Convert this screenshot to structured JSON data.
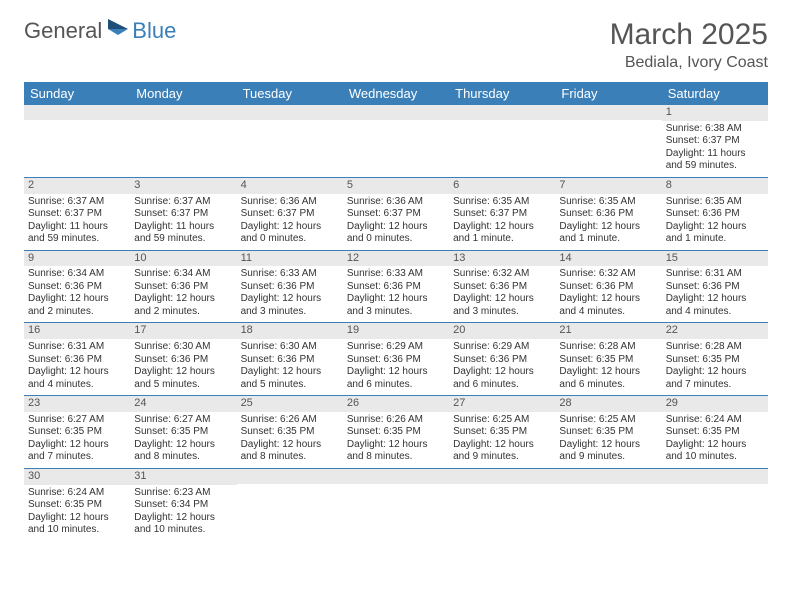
{
  "logo": {
    "part1": "General",
    "part2": "Blue"
  },
  "title": "March 2025",
  "subtitle": "Bediala, Ivory Coast",
  "header_bg": "#3b7fb8",
  "daynum_bg": "#e9e9e9",
  "dayNames": [
    "Sunday",
    "Monday",
    "Tuesday",
    "Wednesday",
    "Thursday",
    "Friday",
    "Saturday"
  ],
  "weeks": [
    [
      {
        "n": "",
        "lines": []
      },
      {
        "n": "",
        "lines": []
      },
      {
        "n": "",
        "lines": []
      },
      {
        "n": "",
        "lines": []
      },
      {
        "n": "",
        "lines": []
      },
      {
        "n": "",
        "lines": []
      },
      {
        "n": "1",
        "lines": [
          "Sunrise: 6:38 AM",
          "Sunset: 6:37 PM",
          "Daylight: 11 hours and 59 minutes."
        ]
      }
    ],
    [
      {
        "n": "2",
        "lines": [
          "Sunrise: 6:37 AM",
          "Sunset: 6:37 PM",
          "Daylight: 11 hours and 59 minutes."
        ]
      },
      {
        "n": "3",
        "lines": [
          "Sunrise: 6:37 AM",
          "Sunset: 6:37 PM",
          "Daylight: 11 hours and 59 minutes."
        ]
      },
      {
        "n": "4",
        "lines": [
          "Sunrise: 6:36 AM",
          "Sunset: 6:37 PM",
          "Daylight: 12 hours and 0 minutes."
        ]
      },
      {
        "n": "5",
        "lines": [
          "Sunrise: 6:36 AM",
          "Sunset: 6:37 PM",
          "Daylight: 12 hours and 0 minutes."
        ]
      },
      {
        "n": "6",
        "lines": [
          "Sunrise: 6:35 AM",
          "Sunset: 6:37 PM",
          "Daylight: 12 hours and 1 minute."
        ]
      },
      {
        "n": "7",
        "lines": [
          "Sunrise: 6:35 AM",
          "Sunset: 6:36 PM",
          "Daylight: 12 hours and 1 minute."
        ]
      },
      {
        "n": "8",
        "lines": [
          "Sunrise: 6:35 AM",
          "Sunset: 6:36 PM",
          "Daylight: 12 hours and 1 minute."
        ]
      }
    ],
    [
      {
        "n": "9",
        "lines": [
          "Sunrise: 6:34 AM",
          "Sunset: 6:36 PM",
          "Daylight: 12 hours and 2 minutes."
        ]
      },
      {
        "n": "10",
        "lines": [
          "Sunrise: 6:34 AM",
          "Sunset: 6:36 PM",
          "Daylight: 12 hours and 2 minutes."
        ]
      },
      {
        "n": "11",
        "lines": [
          "Sunrise: 6:33 AM",
          "Sunset: 6:36 PM",
          "Daylight: 12 hours and 3 minutes."
        ]
      },
      {
        "n": "12",
        "lines": [
          "Sunrise: 6:33 AM",
          "Sunset: 6:36 PM",
          "Daylight: 12 hours and 3 minutes."
        ]
      },
      {
        "n": "13",
        "lines": [
          "Sunrise: 6:32 AM",
          "Sunset: 6:36 PM",
          "Daylight: 12 hours and 3 minutes."
        ]
      },
      {
        "n": "14",
        "lines": [
          "Sunrise: 6:32 AM",
          "Sunset: 6:36 PM",
          "Daylight: 12 hours and 4 minutes."
        ]
      },
      {
        "n": "15",
        "lines": [
          "Sunrise: 6:31 AM",
          "Sunset: 6:36 PM",
          "Daylight: 12 hours and 4 minutes."
        ]
      }
    ],
    [
      {
        "n": "16",
        "lines": [
          "Sunrise: 6:31 AM",
          "Sunset: 6:36 PM",
          "Daylight: 12 hours and 4 minutes."
        ]
      },
      {
        "n": "17",
        "lines": [
          "Sunrise: 6:30 AM",
          "Sunset: 6:36 PM",
          "Daylight: 12 hours and 5 minutes."
        ]
      },
      {
        "n": "18",
        "lines": [
          "Sunrise: 6:30 AM",
          "Sunset: 6:36 PM",
          "Daylight: 12 hours and 5 minutes."
        ]
      },
      {
        "n": "19",
        "lines": [
          "Sunrise: 6:29 AM",
          "Sunset: 6:36 PM",
          "Daylight: 12 hours and 6 minutes."
        ]
      },
      {
        "n": "20",
        "lines": [
          "Sunrise: 6:29 AM",
          "Sunset: 6:36 PM",
          "Daylight: 12 hours and 6 minutes."
        ]
      },
      {
        "n": "21",
        "lines": [
          "Sunrise: 6:28 AM",
          "Sunset: 6:35 PM",
          "Daylight: 12 hours and 6 minutes."
        ]
      },
      {
        "n": "22",
        "lines": [
          "Sunrise: 6:28 AM",
          "Sunset: 6:35 PM",
          "Daylight: 12 hours and 7 minutes."
        ]
      }
    ],
    [
      {
        "n": "23",
        "lines": [
          "Sunrise: 6:27 AM",
          "Sunset: 6:35 PM",
          "Daylight: 12 hours and 7 minutes."
        ]
      },
      {
        "n": "24",
        "lines": [
          "Sunrise: 6:27 AM",
          "Sunset: 6:35 PM",
          "Daylight: 12 hours and 8 minutes."
        ]
      },
      {
        "n": "25",
        "lines": [
          "Sunrise: 6:26 AM",
          "Sunset: 6:35 PM",
          "Daylight: 12 hours and 8 minutes."
        ]
      },
      {
        "n": "26",
        "lines": [
          "Sunrise: 6:26 AM",
          "Sunset: 6:35 PM",
          "Daylight: 12 hours and 8 minutes."
        ]
      },
      {
        "n": "27",
        "lines": [
          "Sunrise: 6:25 AM",
          "Sunset: 6:35 PM",
          "Daylight: 12 hours and 9 minutes."
        ]
      },
      {
        "n": "28",
        "lines": [
          "Sunrise: 6:25 AM",
          "Sunset: 6:35 PM",
          "Daylight: 12 hours and 9 minutes."
        ]
      },
      {
        "n": "29",
        "lines": [
          "Sunrise: 6:24 AM",
          "Sunset: 6:35 PM",
          "Daylight: 12 hours and 10 minutes."
        ]
      }
    ],
    [
      {
        "n": "30",
        "lines": [
          "Sunrise: 6:24 AM",
          "Sunset: 6:35 PM",
          "Daylight: 12 hours and 10 minutes."
        ]
      },
      {
        "n": "31",
        "lines": [
          "Sunrise: 6:23 AM",
          "Sunset: 6:34 PM",
          "Daylight: 12 hours and 10 minutes."
        ]
      },
      {
        "n": "",
        "lines": []
      },
      {
        "n": "",
        "lines": []
      },
      {
        "n": "",
        "lines": []
      },
      {
        "n": "",
        "lines": []
      },
      {
        "n": "",
        "lines": []
      }
    ]
  ]
}
